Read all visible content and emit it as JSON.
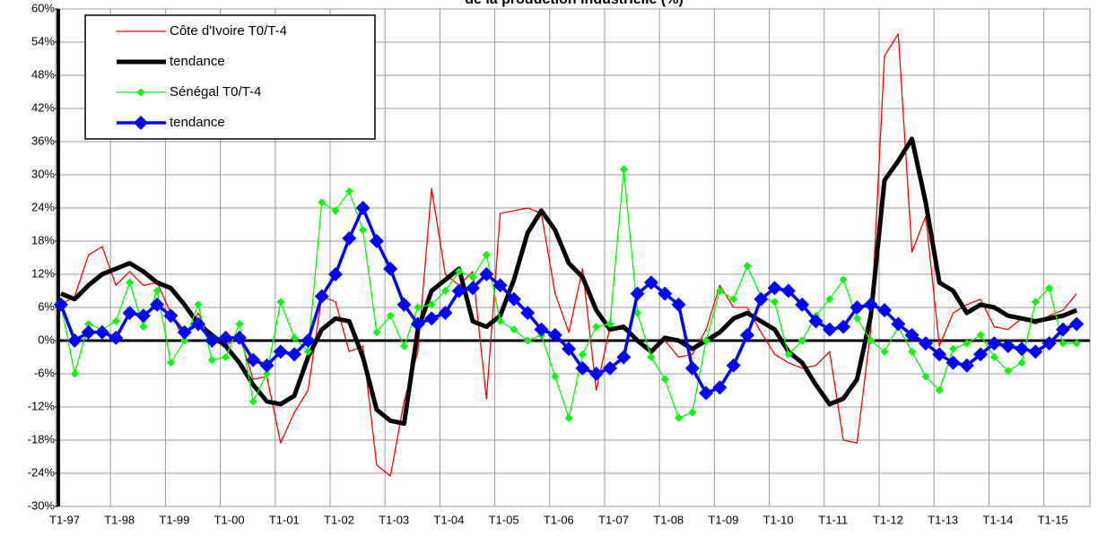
{
  "chart_data": {
    "type": "line",
    "title": "de la production industrielle (%)",
    "categories": [
      "T1-97",
      null,
      null,
      null,
      "T1-98",
      null,
      null,
      null,
      "T1-99",
      null,
      null,
      null,
      "T1-00",
      null,
      null,
      null,
      "T1-01",
      null,
      null,
      null,
      "T1-02",
      null,
      null,
      null,
      "T1-03",
      null,
      null,
      null,
      "T1-04",
      null,
      null,
      null,
      "T1-05",
      null,
      null,
      null,
      "T1-06",
      null,
      null,
      null,
      "T1-07",
      null,
      null,
      null,
      "T1-08",
      null,
      null,
      null,
      "T1-09",
      null,
      null,
      null,
      "T1-10",
      null,
      null,
      null,
      "T1-11",
      null,
      null,
      null,
      "T1-12",
      null,
      null,
      null,
      "T1-13",
      null,
      null,
      null,
      "T1-14",
      null,
      null,
      null,
      "T1-15",
      null,
      null
    ],
    "series": [
      {
        "name": "Côte d'Ivoire T0/T-4",
        "color": "#ff0000",
        "values": [
          6.5,
          8,
          15.5,
          17,
          10,
          12.5,
          10,
          10.5,
          5,
          0,
          5,
          0,
          -1,
          1,
          -7,
          -6.5,
          -18.5,
          -13,
          -9,
          8,
          7,
          -2,
          -1,
          -22.5,
          -24.5,
          -11,
          -2,
          27.5,
          12,
          10,
          12.5,
          -10.5,
          23,
          23.5,
          24,
          23,
          8.5,
          1.5,
          13,
          -9,
          2.5,
          2,
          0,
          -2,
          0,
          -3,
          -2.5,
          2,
          10,
          6,
          6,
          1.5,
          -2.5,
          -4,
          -5,
          -4.5,
          -2,
          -18,
          -18.5,
          2,
          51.5,
          55.5,
          16,
          22.5,
          -1,
          5,
          6.5,
          7.5,
          2.5,
          2,
          4,
          3,
          4.5,
          5.5,
          8.5
        ]
      },
      {
        "name": "tendance",
        "color": "#000000",
        "values": [
          8.5,
          7.5,
          10,
          12,
          13,
          14,
          12.5,
          10.5,
          9.5,
          6.5,
          3,
          1,
          -1,
          -4,
          -8,
          -11,
          -11.5,
          -10,
          -3,
          2,
          4,
          3.5,
          -3,
          -12.5,
          -14.5,
          -15,
          2,
          9,
          11,
          13,
          3.5,
          2.5,
          4.5,
          11,
          19.5,
          23.5,
          20,
          14,
          11.5,
          5.5,
          2,
          2.5,
          0,
          -2,
          0.5,
          0,
          -1.5,
          0,
          1.5,
          4,
          5,
          3.5,
          2,
          -2,
          -4,
          -8,
          -11.5,
          -10.5,
          -7,
          4.5,
          29,
          32.5,
          36.5,
          25,
          10.5,
          9,
          5,
          6.5,
          6,
          4.5,
          4,
          3.5,
          4,
          4.5,
          5.5
        ]
      },
      {
        "name": "Sénégal T0/T-4",
        "color": "#00ff00",
        "values": [
          6.5,
          -6,
          3,
          2,
          3.5,
          10.5,
          2.5,
          9,
          -4,
          0,
          6.5,
          -3.5,
          -3,
          3,
          -11,
          -6,
          7,
          0.5,
          -2,
          25,
          23.5,
          27,
          20,
          1.5,
          4.5,
          -1,
          6,
          6.5,
          9,
          12.5,
          11.5,
          15.5,
          3.5,
          2,
          0,
          1,
          -6.5,
          -14,
          -2.5,
          2.5,
          3,
          31,
          5,
          -3,
          -7,
          -14,
          -13,
          0,
          9,
          7.5,
          13.5,
          8,
          7,
          -2.5,
          0,
          4.5,
          7.5,
          11,
          4,
          0,
          -2,
          2.5,
          -2,
          -6.5,
          -9,
          -1.5,
          -0.5,
          1,
          -3,
          -5.5,
          -4,
          7,
          9.5,
          -0.5,
          -0.5
        ]
      },
      {
        "name": "tendance",
        "color": "#0000ff",
        "values": [
          6.5,
          0,
          1.5,
          1.5,
          0.5,
          5,
          4.5,
          6.5,
          4.5,
          1.5,
          3,
          0,
          0.5,
          0.5,
          -3.5,
          -4.5,
          -2,
          -2.5,
          0,
          8,
          12,
          18.5,
          24,
          18,
          13,
          6.5,
          3,
          4,
          5,
          9,
          9.5,
          12,
          10,
          7.5,
          5,
          2,
          1,
          -1.5,
          -5,
          -6,
          -5,
          -3,
          8.5,
          10.5,
          8.5,
          6.5,
          -5,
          -9.5,
          -8.5,
          -4.5,
          1,
          7.5,
          9.5,
          9,
          6.5,
          3.5,
          2,
          2.5,
          6,
          6.5,
          5.5,
          3,
          1,
          -0.5,
          -2.5,
          -4,
          -4.5,
          -2.5,
          -0.5,
          -1,
          -1.5,
          -2,
          -0.5,
          2,
          3
        ]
      }
    ],
    "ylim": [
      -30,
      60
    ],
    "yticks": [
      {
        "value": -30,
        "label": "-30%"
      },
      {
        "value": -24,
        "label": "-24%"
      },
      {
        "value": -18,
        "label": "-18%"
      },
      {
        "value": -12,
        "label": "-12%"
      },
      {
        "value": -6,
        "label": "-6%"
      },
      {
        "value": 0,
        "label": "0%"
      },
      {
        "value": 6,
        "label": "6%"
      },
      {
        "value": 12,
        "label": "12%"
      },
      {
        "value": 18,
        "label": "18%"
      },
      {
        "value": 24,
        "label": "24%"
      },
      {
        "value": 30,
        "label": "30%"
      },
      {
        "value": 36,
        "label": "36%"
      },
      {
        "value": 42,
        "label": "42%"
      },
      {
        "value": 48,
        "label": "48%"
      },
      {
        "value": 54,
        "label": "54%"
      },
      {
        "value": 60,
        "label": "60%"
      }
    ],
    "grid": true
  }
}
